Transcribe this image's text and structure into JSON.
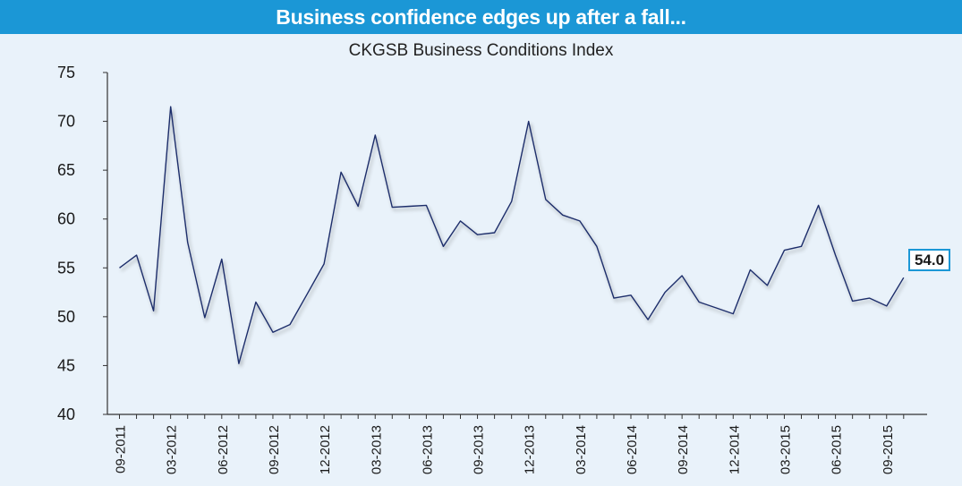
{
  "header": {
    "banner_title": "Business confidence edges up after a fall...",
    "chart_subtitle": "CKGSB Business Conditions Index"
  },
  "colors": {
    "banner": "#1b97d6",
    "background": "#e9f2fa",
    "line": "#1f2d6b",
    "callout_border": "#1b97d6"
  },
  "chart_data": {
    "type": "line",
    "title": "CKGSB Business Conditions Index",
    "ylim": [
      40,
      75
    ],
    "yticks": [
      40,
      45,
      50,
      55,
      60,
      65,
      70,
      75
    ],
    "x_tick_labels": [
      "09-2011",
      "03-2012",
      "06-2012",
      "09-2012",
      "12-2012",
      "03-2013",
      "06-2013",
      "09-2013",
      "12-2013",
      "03-2014",
      "06-2014",
      "09-2014",
      "12-2014",
      "03-2015",
      "06-2015",
      "09-2015"
    ],
    "x_tick_positions": [
      0,
      3,
      6,
      9,
      12,
      15,
      18,
      21,
      24,
      27,
      30,
      33,
      36,
      39,
      42,
      45
    ],
    "grid": false,
    "series": [
      {
        "values": [
          55.0,
          56.3,
          50.6,
          71.5,
          57.6,
          49.9,
          55.9,
          45.2,
          51.5,
          48.4,
          49.2,
          52.3,
          55.4,
          64.8,
          61.3,
          68.6,
          61.2,
          61.3,
          61.4,
          57.2,
          59.8,
          58.4,
          58.6,
          61.8,
          70.0,
          62.0,
          60.4,
          59.8,
          57.2,
          51.9,
          52.2,
          49.7,
          52.5,
          54.2,
          51.5,
          50.9,
          50.3,
          54.8,
          53.2,
          56.8,
          57.2,
          61.4,
          56.3,
          51.6,
          51.9,
          51.1,
          54.0
        ]
      }
    ],
    "callout_value": "54.0"
  }
}
